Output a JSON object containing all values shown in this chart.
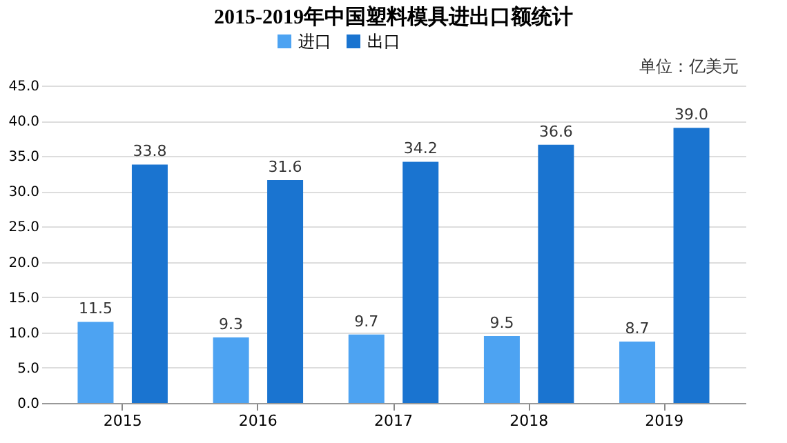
{
  "chart_data": {
    "type": "bar",
    "title": "2015-2019年中国塑料模具进出口额统计",
    "categories": [
      "2015",
      "2016",
      "2017",
      "2018",
      "2019"
    ],
    "series": [
      {
        "name": "进口",
        "color": "#4da3f2",
        "values": [
          11.5,
          9.3,
          9.7,
          9.5,
          8.7
        ],
        "value_labels": [
          "11.5",
          "9.3",
          "9.7",
          "9.5",
          "8.7"
        ]
      },
      {
        "name": "出口",
        "color": "#1a74d0",
        "values": [
          33.8,
          31.6,
          34.2,
          36.6,
          39.0
        ],
        "value_labels": [
          "33.8",
          "31.6",
          "34.2",
          "36.6",
          "39.0"
        ]
      }
    ],
    "ylim": [
      0,
      45
    ],
    "yticks": [
      {
        "value": 0,
        "label": "0.0"
      },
      {
        "value": 5,
        "label": "5.0"
      },
      {
        "value": 10,
        "label": "10.0"
      },
      {
        "value": 15,
        "label": "15.0"
      },
      {
        "value": 20,
        "label": "20.0"
      },
      {
        "value": 25,
        "label": "25.0"
      },
      {
        "value": 30,
        "label": "30.0"
      },
      {
        "value": 35,
        "label": "35.0"
      },
      {
        "value": 40,
        "label": "40.0"
      },
      {
        "value": 45,
        "label": "45.0"
      }
    ],
    "annotations": [
      "单位：亿美元"
    ],
    "grid": "y",
    "legend": "top"
  }
}
